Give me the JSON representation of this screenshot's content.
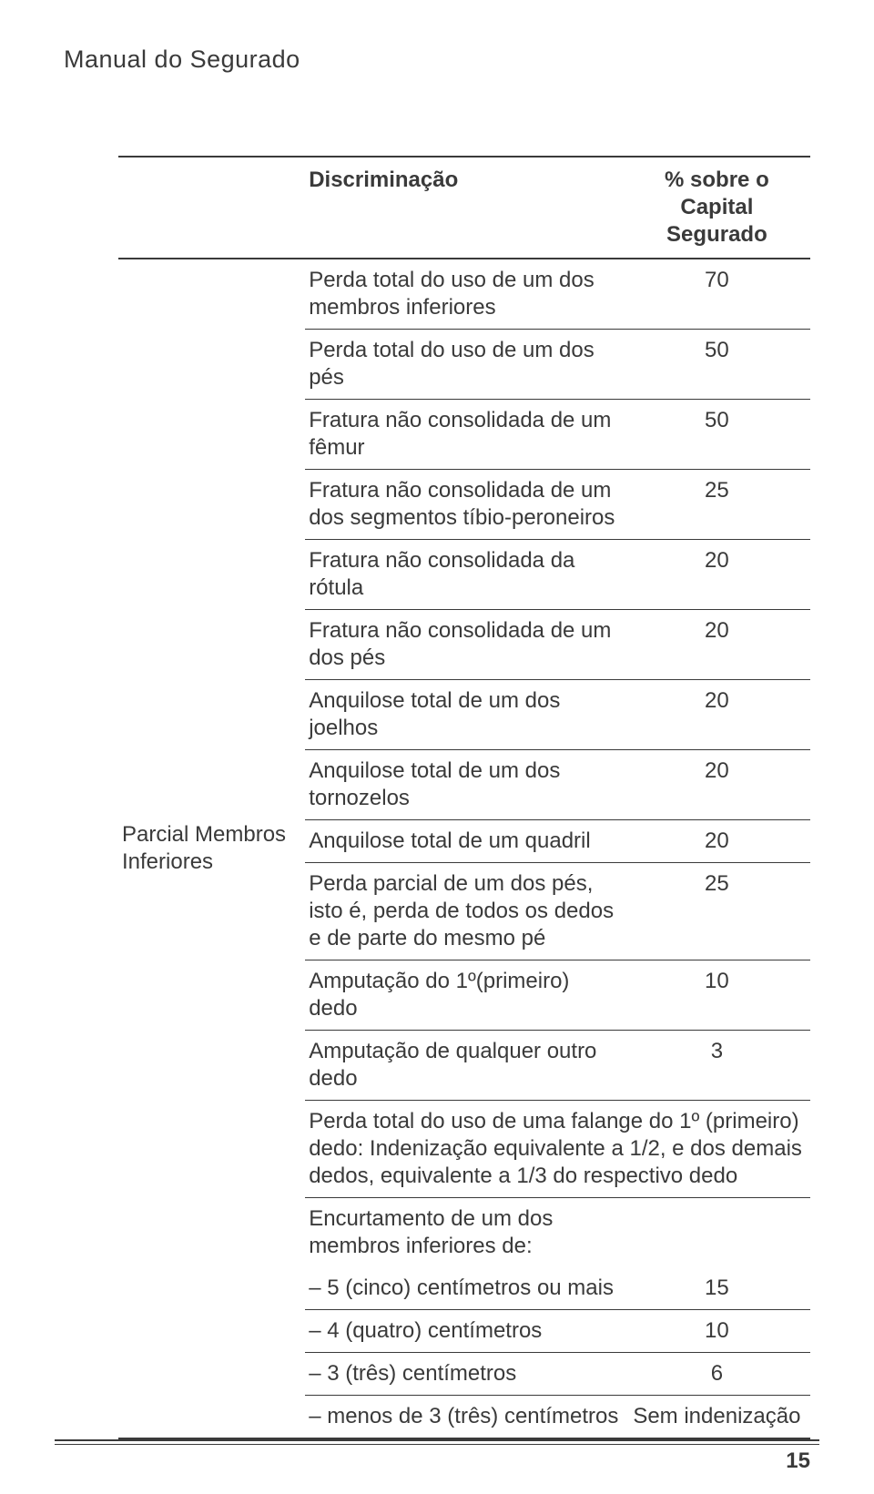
{
  "page": {
    "title": "Manual do Segurado",
    "number": "15",
    "colors": {
      "background": "#ffffff",
      "text": "#3a3a3a",
      "rule_heavy": "#3a3a3a",
      "rule_light": "#3a3a3a"
    },
    "fonts": {
      "body_size_pt": 18,
      "title_size_pt": 20
    }
  },
  "table": {
    "type": "table",
    "header": {
      "discrimination": "Discriminação",
      "percent": "% sobre o Capital Segurado"
    },
    "category_label": "Parcial Membros Inferiores",
    "rows": [
      {
        "desc": "Perda total do uso de um dos membros inferiores",
        "value": "70"
      },
      {
        "desc": "Perda total do uso de um dos pés",
        "value": "50"
      },
      {
        "desc": "Fratura não consolidada de um fêmur",
        "value": "50"
      },
      {
        "desc": "Fratura não consolidada de um dos segmentos tíbio-peroneiros",
        "value": "25"
      },
      {
        "desc": "Fratura não consolidada da rótula",
        "value": "20"
      },
      {
        "desc": "Fratura não consolidada de um dos pés",
        "value": "20"
      },
      {
        "desc": "Anquilose total de um dos joelhos",
        "value": "20"
      },
      {
        "desc": "Anquilose total de um dos tornozelos",
        "value": "20"
      },
      {
        "desc": "Anquilose total de um quadril",
        "value": "20"
      },
      {
        "desc": "Perda parcial de um dos pés, isto é, perda de todos os dedos e de parte do mesmo pé",
        "value": "25"
      },
      {
        "desc": "Amputação do 1º(primeiro) dedo",
        "value": "10"
      },
      {
        "desc": "Amputação de qualquer outro dedo",
        "value": "3"
      },
      {
        "full": true,
        "desc": "Perda total do uso de uma falange do 1º (primeiro) dedo: Indenização equivalente a 1/2, e dos demais dedos, equivalente a 1/3 do respectivo dedo"
      },
      {
        "noborder": true,
        "desc": "Encurtamento de um dos membros inferiores de:",
        "value": ""
      },
      {
        "desc": "– 5 (cinco) centímetros ou mais",
        "value": "15"
      },
      {
        "desc": "– 4 (quatro) centímetros",
        "value": "10"
      },
      {
        "desc": "– 3 (três) centímetros",
        "value": "6"
      },
      {
        "last": true,
        "desc": "– menos de 3 (três) centímetros",
        "value": "Sem indenização"
      }
    ]
  }
}
